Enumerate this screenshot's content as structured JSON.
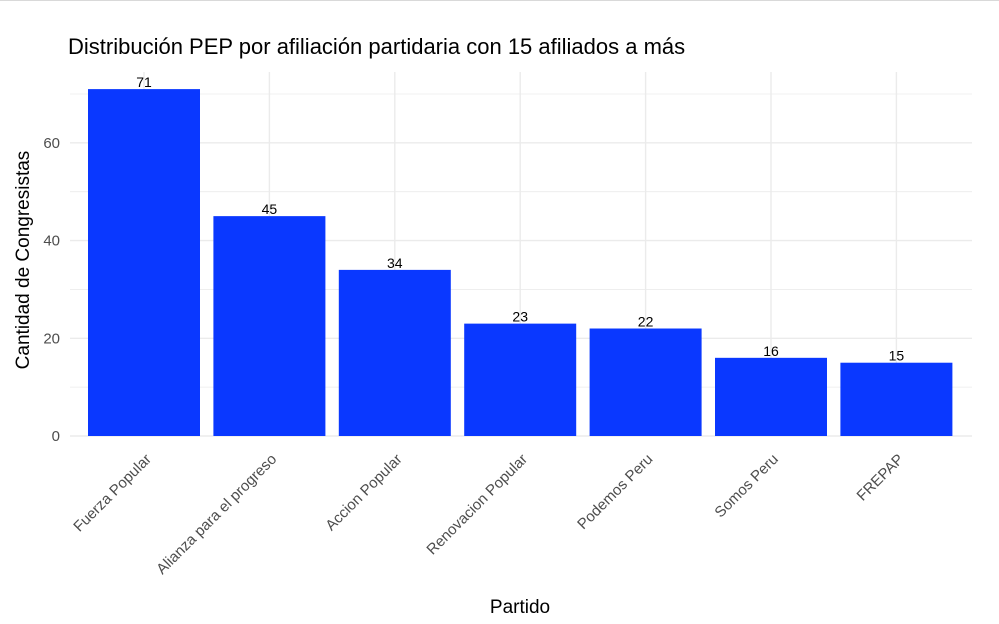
{
  "chart_data": {
    "type": "bar",
    "title": "Distribución PEP por afiliación partidaria con 15 afiliados a más",
    "xlabel": "Partido",
    "ylabel": "Cantidad de Congresistas",
    "categories": [
      "Fuerza Popular",
      "Alianza para el progreso",
      "Accion Popular",
      "Renovacion Popular",
      "Podemos Peru",
      "Somos Peru",
      "FREPAP"
    ],
    "values": [
      71,
      45,
      34,
      23,
      22,
      16,
      15
    ],
    "y_ticks": [
      0,
      20,
      40,
      60
    ],
    "ylim": [
      0,
      74.5
    ],
    "grid": true,
    "legend": "none",
    "bar_color": "#0a38ff",
    "grid_color": "#ebebeb"
  }
}
